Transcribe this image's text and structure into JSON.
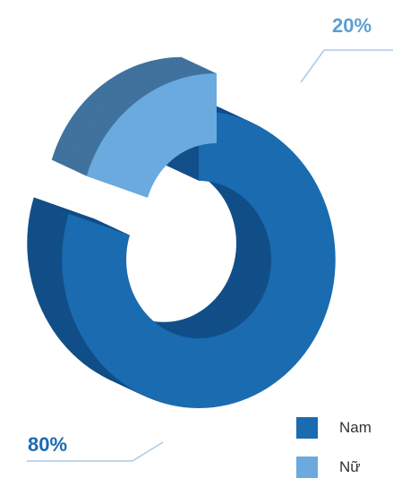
{
  "chart_data": {
    "type": "pie",
    "style": "3d-donut",
    "title": "",
    "categories": [
      "Nam",
      "Nữ"
    ],
    "values": [
      80,
      20
    ],
    "value_labels": [
      "80%",
      "20%"
    ],
    "colors": [
      "#1a6bb0",
      "#6aaadf"
    ],
    "legend": {
      "placement": "bottom-right",
      "items": [
        {
          "label": "Nam",
          "color": "#1a6bb0"
        },
        {
          "label": "Nữ",
          "color": "#6aaadf"
        }
      ]
    }
  },
  "colors": {
    "male_side": "#124f88",
    "female_side": "#41729e",
    "label_text": "#1a6bb0",
    "label_female_text": "#5b9fd4",
    "leader_line": "#a9cbe8"
  }
}
